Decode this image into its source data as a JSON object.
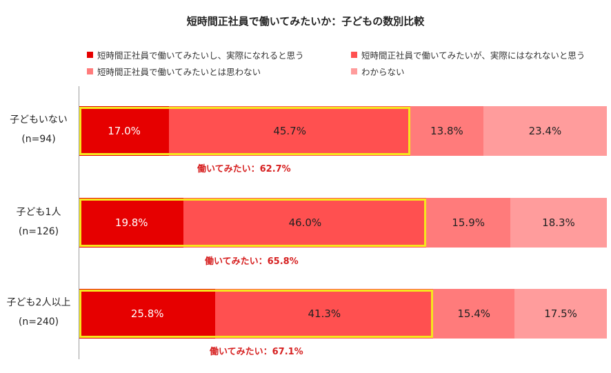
{
  "chart_data": {
    "type": "bar",
    "orientation": "horizontal",
    "stacked": true,
    "percent": true,
    "title": "短時間正社員で働いてみたいか：子どもの数別比較",
    "legend_placement": "top",
    "categories": [
      {
        "label": "子どもいない",
        "n": "(n=94)"
      },
      {
        "label": "子ども1人",
        "n": "(n=126)"
      },
      {
        "label": "子ども2人以上",
        "n": "(n=240)"
      }
    ],
    "series": [
      {
        "name": "短時間正社員で働いてみたいし、実際になれると思う",
        "color": "#e60000",
        "values": [
          17.0,
          19.8,
          25.8
        ],
        "labels": [
          "17.0%",
          "19.8%",
          "25.8%"
        ]
      },
      {
        "name": "短時間正社員で働いてみたいが、実際にはなれないと思う",
        "color": "#ff5050",
        "values": [
          45.7,
          46.0,
          41.3
        ],
        "labels": [
          "45.7%",
          "46.0%",
          "41.3%"
        ]
      },
      {
        "name": "短時間正社員で働いてみたいとは思わない",
        "color": "#ff7b7b",
        "values": [
          13.8,
          15.9,
          15.4
        ],
        "labels": [
          "13.8%",
          "15.9%",
          "15.4%"
        ]
      },
      {
        "name": "わからない",
        "color": "#ff9c9c",
        "values": [
          23.4,
          18.3,
          17.5
        ],
        "labels": [
          "23.4%",
          "18.3%",
          "17.5%"
        ]
      }
    ],
    "annotations": [
      "働いてみたい：62.7%",
      "働いてみたい：65.8%",
      "働いてみたい：67.1%"
    ],
    "highlight_color": "#f5e71d",
    "annotation_color": "#d62020",
    "xlim": [
      0,
      100
    ],
    "grid": false
  }
}
